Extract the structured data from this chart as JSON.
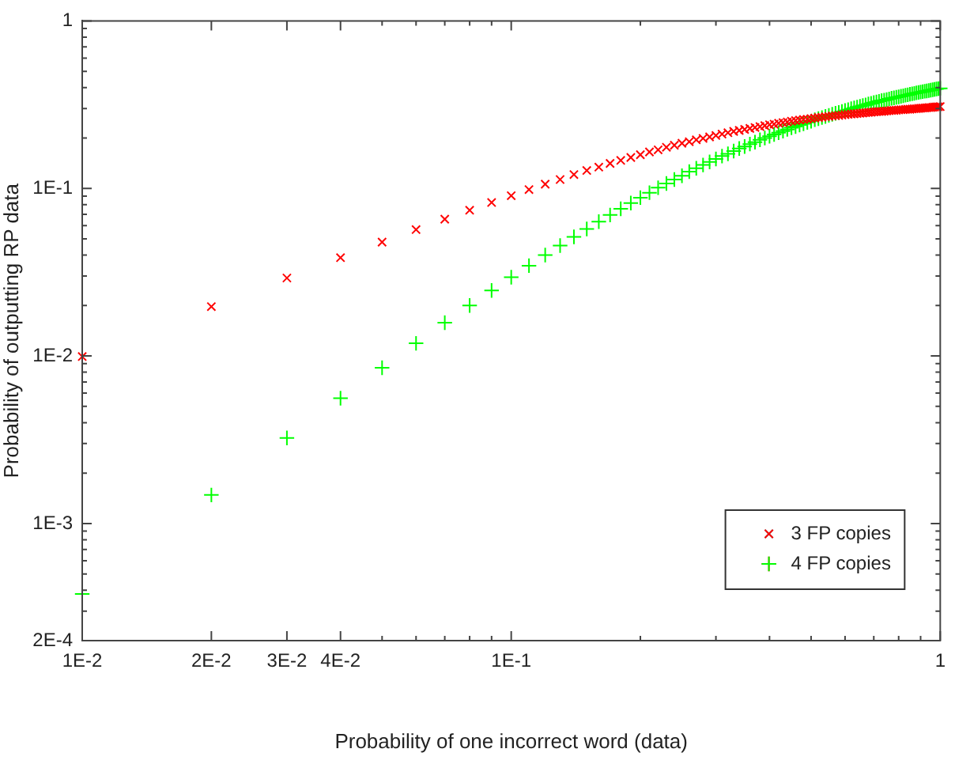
{
  "chart_data": {
    "type": "scatter",
    "xlabel": "Probability of one incorrect word (data)",
    "ylabel": "Probability of outputting RP data",
    "log": "xy",
    "legend": "bottom right",
    "grid": false,
    "xlim": [
      0.01,
      1
    ],
    "ylim": [
      0.0002,
      1
    ],
    "xticks": [
      {
        "value": 0.01,
        "label": "1E-2"
      },
      {
        "value": 0.02,
        "label": "2E-2"
      },
      {
        "value": 0.03,
        "label": "3E-2"
      },
      {
        "value": 0.04,
        "label": "4E-2"
      },
      {
        "value": 0.05,
        "label": null
      },
      {
        "value": 0.06,
        "label": null
      },
      {
        "value": 0.07,
        "label": null
      },
      {
        "value": 0.08,
        "label": null
      },
      {
        "value": 0.09,
        "label": null
      },
      {
        "value": 0.1,
        "label": "1E-1"
      },
      {
        "value": 0.2,
        "label": null
      },
      {
        "value": 0.3,
        "label": null
      },
      {
        "value": 0.4,
        "label": null
      },
      {
        "value": 0.5,
        "label": null
      },
      {
        "value": 0.6,
        "label": null
      },
      {
        "value": 0.7,
        "label": null
      },
      {
        "value": 0.8,
        "label": null
      },
      {
        "value": 0.9,
        "label": null
      },
      1
    ],
    "yticks": [
      {
        "value": 0.0002,
        "label": "2E-4"
      },
      {
        "value": 0.0003,
        "label": null
      },
      {
        "value": 0.0004,
        "label": null
      },
      {
        "value": 0.0005,
        "label": null
      },
      {
        "value": 0.0006,
        "label": null
      },
      {
        "value": 0.0007,
        "label": null
      },
      {
        "value": 0.0008,
        "label": null
      },
      {
        "value": 0.0009,
        "label": null
      },
      {
        "value": 0.001,
        "label": "1E-3"
      },
      {
        "value": 0.002,
        "label": null
      },
      {
        "value": 0.003,
        "label": null
      },
      {
        "value": 0.004,
        "label": null
      },
      {
        "value": 0.005,
        "label": null
      },
      {
        "value": 0.006,
        "label": null
      },
      {
        "value": 0.007,
        "label": null
      },
      {
        "value": 0.008,
        "label": null
      },
      {
        "value": 0.009,
        "label": null
      },
      {
        "value": 0.01,
        "label": "1E-2"
      },
      {
        "value": 0.02,
        "label": null
      },
      {
        "value": 0.03,
        "label": null
      },
      {
        "value": 0.04,
        "label": null
      },
      {
        "value": 0.05,
        "label": null
      },
      {
        "value": 0.06,
        "label": null
      },
      {
        "value": 0.07,
        "label": null
      },
      {
        "value": 0.08,
        "label": null
      },
      {
        "value": 0.09,
        "label": null
      },
      {
        "value": 0.1,
        "label": "1E-1"
      },
      {
        "value": 0.2,
        "label": null
      },
      {
        "value": 0.3,
        "label": null
      },
      {
        "value": 0.4,
        "label": null
      },
      {
        "value": 0.5,
        "label": null
      },
      {
        "value": 0.6,
        "label": null
      },
      {
        "value": 0.7,
        "label": null
      },
      {
        "value": 0.8,
        "label": null
      },
      {
        "value": 0.9,
        "label": null
      },
      1
    ],
    "x": [
      0.01,
      0.02,
      0.03,
      0.04,
      0.05,
      0.06,
      0.07,
      0.08,
      0.09,
      0.1,
      0.11,
      0.12,
      0.13,
      0.14,
      0.15,
      0.16,
      0.17,
      0.18,
      0.19,
      0.2,
      0.21,
      0.22,
      0.23,
      0.24,
      0.25,
      0.26,
      0.27,
      0.28,
      0.29,
      0.3,
      0.31,
      0.32,
      0.33,
      0.34,
      0.35,
      0.36,
      0.37,
      0.38,
      0.39,
      0.4,
      0.41,
      0.42,
      0.43,
      0.44,
      0.45,
      0.46,
      0.47,
      0.48,
      0.49,
      0.5,
      0.51,
      0.52,
      0.53,
      0.54,
      0.55,
      0.56,
      0.57,
      0.58,
      0.59,
      0.6,
      0.61,
      0.62,
      0.63,
      0.64,
      0.65,
      0.66,
      0.67,
      0.68,
      0.69,
      0.7,
      0.71,
      0.72,
      0.73,
      0.74,
      0.75,
      0.76,
      0.77,
      0.78,
      0.79,
      0.8,
      0.81,
      0.82,
      0.83,
      0.84,
      0.85,
      0.86,
      0.87,
      0.88,
      0.89,
      0.9,
      0.91,
      0.92,
      0.93,
      0.94,
      0.95,
      0.96,
      0.97,
      0.98,
      0.99,
      1
    ],
    "series": [
      {
        "name": "3 FP copies",
        "color": "#ff0000",
        "marker": "cross",
        "values": [
          0.00992,
          0.0197,
          0.0292,
          0.0386,
          0.0478,
          0.0568,
          0.0655,
          0.0741,
          0.0824,
          0.0905,
          0.0984,
          0.106,
          0.113,
          0.121,
          0.128,
          0.134,
          0.141,
          0.147,
          0.153,
          0.159,
          0.165,
          0.17,
          0.176,
          0.181,
          0.186,
          0.19,
          0.195,
          0.199,
          0.203,
          0.207,
          0.211,
          0.215,
          0.219,
          0.222,
          0.225,
          0.228,
          0.231,
          0.234,
          0.237,
          0.24,
          0.242,
          0.245,
          0.247,
          0.249,
          0.252,
          0.254,
          0.256,
          0.258,
          0.259,
          0.261,
          0.263,
          0.265,
          0.266,
          0.268,
          0.269,
          0.271,
          0.272,
          0.273,
          0.274,
          0.276,
          0.277,
          0.278,
          0.279,
          0.28,
          0.281,
          0.282,
          0.283,
          0.284,
          0.285,
          0.286,
          0.287,
          0.288,
          0.288,
          0.289,
          0.29,
          0.291,
          0.292,
          0.292,
          0.293,
          0.294,
          0.295,
          0.295,
          0.296,
          0.297,
          0.297,
          0.298,
          0.299,
          0.299,
          0.3,
          0.301,
          0.302,
          0.302,
          0.303,
          0.304,
          0.304,
          0.305,
          0.306,
          0.307,
          0.307,
          0.308
        ]
      },
      {
        "name": "4 FP copies",
        "color": "#00ff00",
        "marker": "plus",
        "values": [
          0.00038,
          0.00148,
          0.00324,
          0.0056,
          0.00851,
          0.0119,
          0.0158,
          0.02,
          0.0246,
          0.0295,
          0.0346,
          0.04,
          0.0456,
          0.0514,
          0.0573,
          0.0633,
          0.0694,
          0.0756,
          0.0818,
          0.0881,
          0.0943,
          0.101,
          0.107,
          0.113,
          0.119,
          0.126,
          0.132,
          0.138,
          0.144,
          0.15,
          0.156,
          0.161,
          0.167,
          0.173,
          0.178,
          0.184,
          0.189,
          0.195,
          0.2,
          0.205,
          0.21,
          0.215,
          0.22,
          0.225,
          0.23,
          0.234,
          0.239,
          0.243,
          0.248,
          0.252,
          0.257,
          0.261,
          0.265,
          0.269,
          0.273,
          0.277,
          0.281,
          0.284,
          0.288,
          0.292,
          0.295,
          0.299,
          0.302,
          0.306,
          0.309,
          0.312,
          0.315,
          0.319,
          0.322,
          0.325,
          0.328,
          0.331,
          0.334,
          0.336,
          0.339,
          0.342,
          0.345,
          0.347,
          0.35,
          0.352,
          0.355,
          0.357,
          0.36,
          0.362,
          0.365,
          0.367,
          0.369,
          0.372,
          0.374,
          0.376,
          0.378,
          0.38,
          0.382,
          0.384,
          0.386,
          0.388,
          0.39,
          0.392,
          0.394,
          0.396
        ]
      }
    ]
  }
}
